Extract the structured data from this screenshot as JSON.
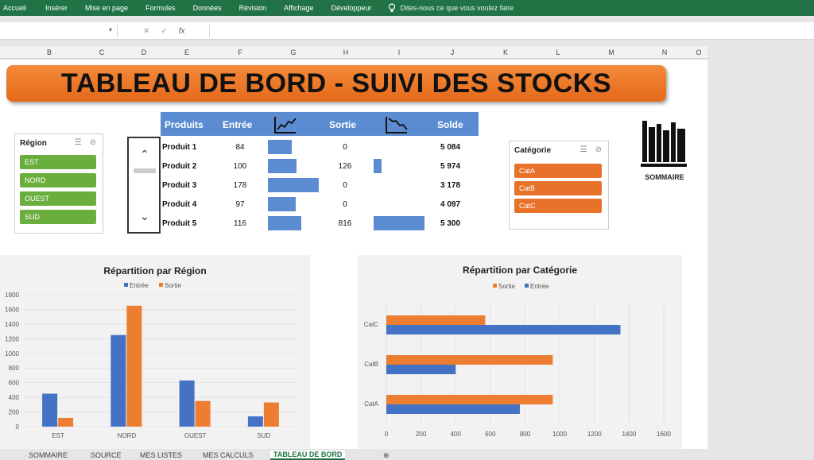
{
  "ribbon": {
    "tabs": [
      "Accueil",
      "Insérer",
      "Mise en page",
      "Formules",
      "Données",
      "Révision",
      "Affichage",
      "Développeur"
    ],
    "tellme": "Dites-nous ce que vous voulez faire",
    "color": "#217346"
  },
  "formula_bar": {
    "fx": "fx",
    "cancel": "✕",
    "enter": "✓"
  },
  "columns": [
    "B",
    "C",
    "D",
    "E",
    "F",
    "G",
    "H",
    "I",
    "J",
    "K",
    "L",
    "M",
    "N",
    "O"
  ],
  "dashboard": {
    "title": "TABLEAU DE BORD - SUIVI DES STOCKS",
    "region_slicer": {
      "header": "Région",
      "items": [
        "EST",
        "NORD",
        "OUEST",
        "SUD"
      ],
      "color": "#6aaf3d"
    },
    "category_slicer": {
      "header": "Catégorie",
      "items": [
        "CatA",
        "CatB",
        "CatC"
      ],
      "color": "#e8722a"
    },
    "table": {
      "headers": {
        "produits": "Produits",
        "entree": "Entrée",
        "sortie": "Sortie",
        "solde": "Solde"
      },
      "rows": [
        {
          "name": "Produit 1",
          "entree": "84",
          "entree_value": 84,
          "sortie": "0",
          "sortie_value": 0,
          "solde": "5 084"
        },
        {
          "name": "Produit 2",
          "entree": "100",
          "entree_value": 100,
          "sortie": "126",
          "sortie_value": 126,
          "solde": "5 974"
        },
        {
          "name": "Produit 3",
          "entree": "178",
          "entree_value": 178,
          "sortie": "0",
          "sortie_value": 0,
          "solde": "3 178"
        },
        {
          "name": "Produit 4",
          "entree": "97",
          "entree_value": 97,
          "sortie": "0",
          "sortie_value": 0,
          "solde": "4 097"
        },
        {
          "name": "Produit 5",
          "entree": "116",
          "entree_value": 116,
          "sortie": "816",
          "sortie_value": 816,
          "solde": "5 300"
        }
      ]
    },
    "sommaire_label": "SOMMAIRE"
  },
  "chart_data": [
    {
      "type": "bar",
      "title": "Répartition par Région",
      "categories": [
        "EST",
        "NORD",
        "OUEST",
        "SUD"
      ],
      "series": [
        {
          "name": "Entrée",
          "values": [
            450,
            1250,
            630,
            140
          ],
          "color": "#4472c4"
        },
        {
          "name": "Sortie",
          "values": [
            120,
            1650,
            350,
            330
          ],
          "color": "#ed7d31"
        }
      ],
      "ylim": [
        0,
        1800
      ],
      "yticks": [
        "0",
        "200",
        "400",
        "600",
        "800",
        "1000",
        "1200",
        "1400",
        "1600",
        "1800"
      ],
      "legend": "top",
      "grid": true
    },
    {
      "type": "bar",
      "orientation": "horizontal",
      "title": "Répartition par Catégorie",
      "categories": [
        "CatA",
        "CatB",
        "CatC"
      ],
      "series": [
        {
          "name": "Sortie",
          "values": [
            960,
            960,
            570
          ],
          "color": "#ed7d31"
        },
        {
          "name": "Entrée",
          "values": [
            770,
            400,
            1350
          ],
          "color": "#4472c4"
        }
      ],
      "xlim": [
        0,
        1600
      ],
      "xticks": [
        "0",
        "200",
        "400",
        "600",
        "800",
        "1000",
        "1200",
        "1400",
        "1600"
      ],
      "legend": "top",
      "grid": true
    }
  ],
  "sheet_tabs": [
    "SOMMAIRE",
    "SOURCE",
    "MES LISTES",
    "MES CALCULS",
    "TABLEAU DE BORD"
  ],
  "active_tab": "TABLEAU DE BORD"
}
